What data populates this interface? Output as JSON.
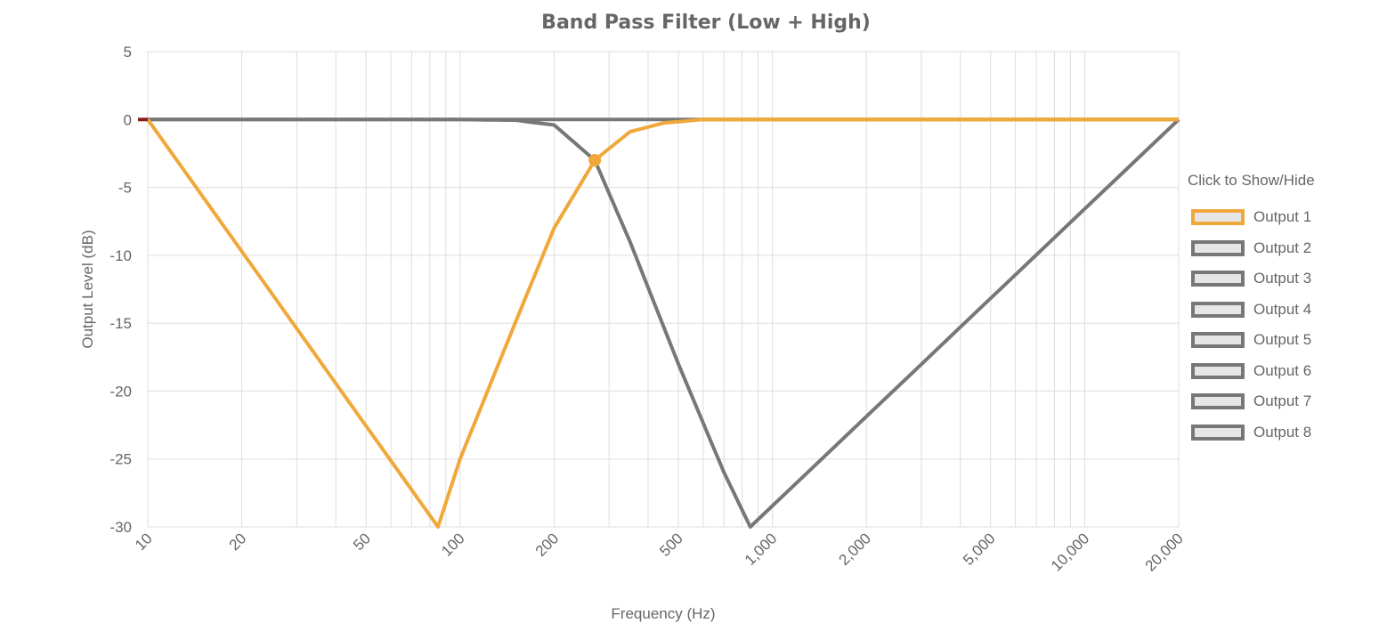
{
  "chart_data": {
    "type": "line",
    "title": "Band Pass Filter (Low + High)",
    "xlabel": "Frequency (Hz)",
    "ylabel": "Output Level (dB)",
    "xscale": "log",
    "xlim": [
      10,
      20000
    ],
    "ylim": [
      -30,
      5
    ],
    "x_ticks": [
      10,
      20,
      50,
      100,
      200,
      500,
      1000,
      2000,
      5000,
      10000,
      20000
    ],
    "x_tick_labels": [
      "10",
      "20",
      "50",
      "100",
      "200",
      "500",
      "1,000",
      "2,000",
      "5,000",
      "10,000",
      "20,000"
    ],
    "y_ticks": [
      5,
      0,
      -5,
      -10,
      -15,
      -20,
      -25,
      -30
    ],
    "y_tick_labels": [
      "5",
      "0",
      "-5",
      "-10",
      "-15",
      "-20",
      "-25",
      "-30"
    ],
    "grid": true,
    "legend_placement": "right",
    "legend_title": "Click to Show/Hide",
    "series": [
      {
        "name": "Output 1",
        "color": "#f0a83a",
        "visible": true,
        "x": [
          10,
          85,
          100,
          150,
          200,
          270,
          350,
          450,
          600,
          1000,
          20000
        ],
        "y": [
          0,
          -30,
          -25,
          -15,
          -8,
          -3,
          -0.9,
          -0.25,
          0,
          0,
          0
        ]
      },
      {
        "name": "Output 2",
        "color": "#777777",
        "visible": true,
        "x": [
          10,
          100,
          150,
          200,
          270,
          350,
          500,
          700,
          850,
          20000
        ],
        "y": [
          0,
          0,
          -0.05,
          -0.4,
          -3,
          -9,
          -18,
          -26,
          -30,
          0
        ],
        "segments": [
          [
            0,
            9
          ],
          [
            9,
            10
          ]
        ]
      },
      {
        "name": "Output 3",
        "color": "#777777",
        "visible": false
      },
      {
        "name": "Output 4",
        "color": "#777777",
        "visible": false
      },
      {
        "name": "Output 5",
        "color": "#777777",
        "visible": false
      },
      {
        "name": "Output 6",
        "color": "#777777",
        "visible": false
      },
      {
        "name": "Output 7",
        "color": "#777777",
        "visible": false
      },
      {
        "name": "Output 8",
        "color": "#777777",
        "visible": false
      }
    ],
    "marker": {
      "x": 270,
      "y": -3,
      "color": "#f0a83a"
    }
  }
}
